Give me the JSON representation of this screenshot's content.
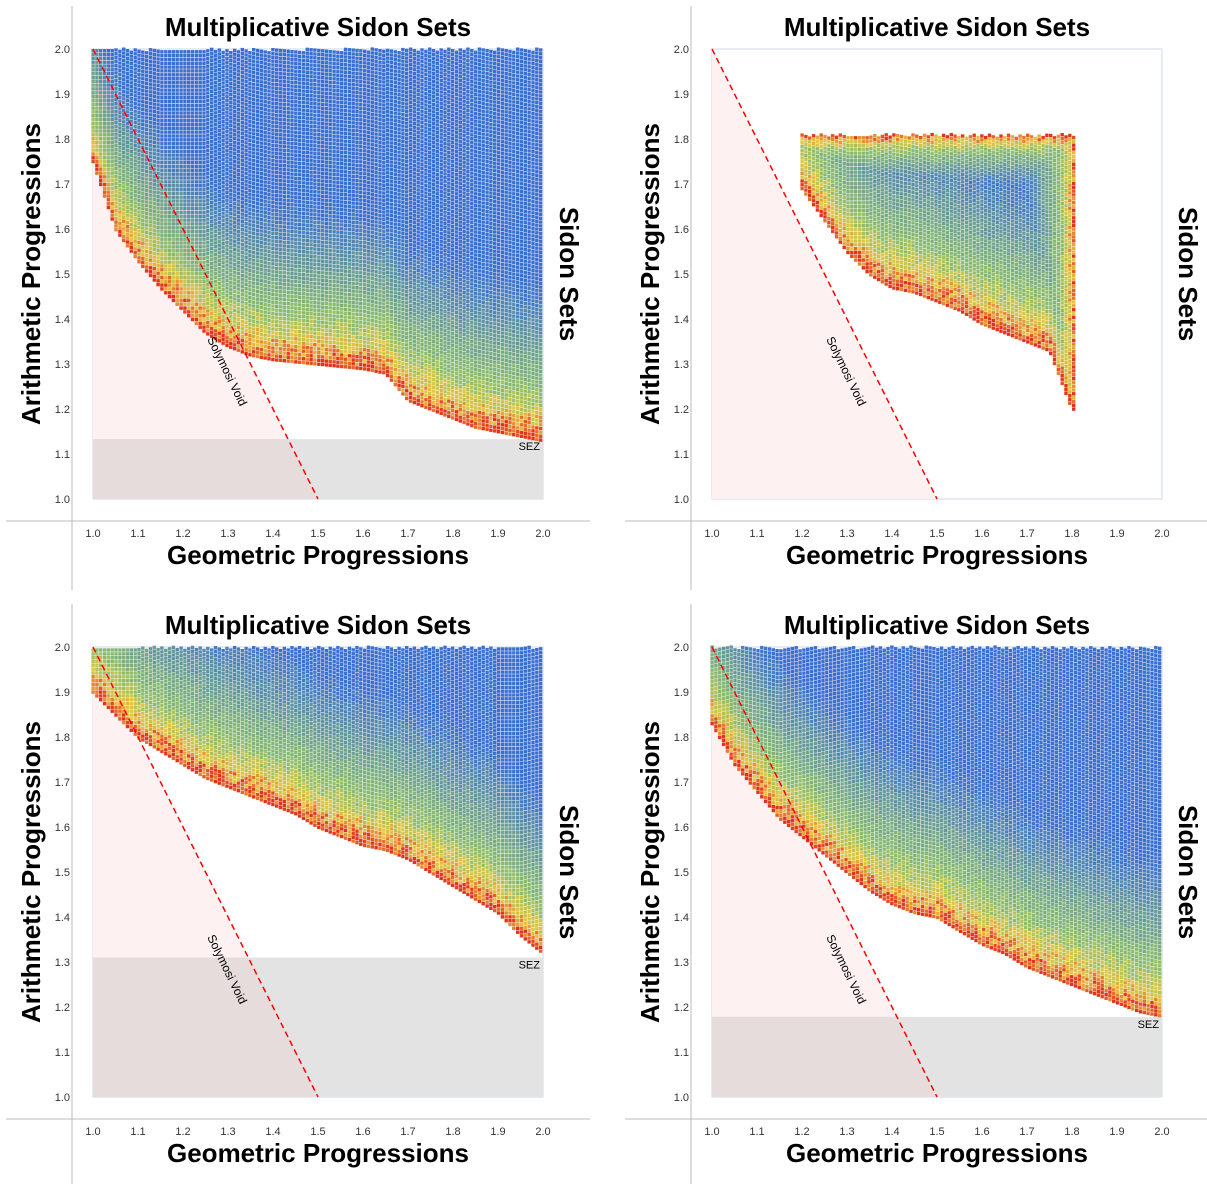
{
  "chart_data": [
    {
      "type": "scatter",
      "title": "Multiplicative Sidon Sets",
      "xlabel": "Geometric Progressions",
      "ylabel": "Arithmetic Progressions",
      "right_label": "Sidon Sets",
      "xlim": [
        1.0,
        2.0
      ],
      "ylim": [
        1.0,
        2.0
      ],
      "xticks": [
        "1.0",
        "1.1",
        "1.2",
        "1.3",
        "1.4",
        "1.5",
        "1.6",
        "1.7",
        "1.8",
        "1.9",
        "2.0"
      ],
      "yticks": [
        "1.0",
        "1.1",
        "1.2",
        "1.3",
        "1.4",
        "1.5",
        "1.6",
        "1.7",
        "1.8",
        "1.9",
        "2.0"
      ],
      "void_label": "Solymosi Void",
      "void_line": [
        [
          1.0,
          2.0
        ],
        [
          1.5,
          1.0
        ]
      ],
      "sez_label": "SEZ",
      "sez_level": 1.133,
      "boundary": [
        [
          1.0,
          1.75
        ],
        [
          1.05,
          1.6
        ],
        [
          1.1,
          1.53
        ],
        [
          1.15,
          1.47
        ],
        [
          1.2,
          1.42
        ],
        [
          1.25,
          1.37
        ],
        [
          1.3,
          1.34
        ],
        [
          1.35,
          1.32
        ],
        [
          1.4,
          1.31
        ],
        [
          1.5,
          1.3
        ],
        [
          1.6,
          1.29
        ],
        [
          1.65,
          1.28
        ],
        [
          1.7,
          1.22
        ],
        [
          1.75,
          1.2
        ],
        [
          1.8,
          1.18
        ],
        [
          1.85,
          1.16
        ],
        [
          1.9,
          1.15
        ],
        [
          1.95,
          1.14
        ],
        [
          2.0,
          1.13
        ]
      ],
      "region": {
        "xmin": 1.0,
        "xmax": 2.0,
        "ymax": 2.0
      }
    },
    {
      "type": "scatter",
      "title": "Multiplicative Sidon Sets",
      "xlabel": "Geometric Progressions",
      "ylabel": "Arithmetic Progressions",
      "right_label": "Sidon Sets",
      "xlim": [
        1.0,
        2.0
      ],
      "ylim": [
        1.0,
        2.0
      ],
      "xticks": [
        "1.0",
        "1.1",
        "1.2",
        "1.3",
        "1.4",
        "1.5",
        "1.6",
        "1.7",
        "1.8",
        "1.9",
        "2.0"
      ],
      "yticks": [
        "1.0",
        "1.1",
        "1.2",
        "1.3",
        "1.4",
        "1.5",
        "1.6",
        "1.7",
        "1.8",
        "1.9",
        "2.0"
      ],
      "void_label": "Solymosi Void",
      "void_line": [
        [
          1.0,
          2.0
        ],
        [
          1.5,
          1.0
        ]
      ],
      "sez_label": "",
      "sez_level": null,
      "boundary": [
        [
          1.2,
          1.69
        ],
        [
          1.25,
          1.62
        ],
        [
          1.3,
          1.55
        ],
        [
          1.35,
          1.5
        ],
        [
          1.4,
          1.47
        ],
        [
          1.45,
          1.46
        ],
        [
          1.5,
          1.44
        ],
        [
          1.55,
          1.42
        ],
        [
          1.6,
          1.39
        ],
        [
          1.65,
          1.37
        ],
        [
          1.7,
          1.35
        ],
        [
          1.75,
          1.33
        ],
        [
          1.8,
          1.2
        ]
      ],
      "region": {
        "xmin": 1.2,
        "xmax": 1.81,
        "ymax": 1.81
      }
    },
    {
      "type": "scatter",
      "title": "Multiplicative Sidon Sets",
      "xlabel": "Geometric Progressions",
      "ylabel": "Arithmetic Progressions",
      "right_label": "Sidon Sets",
      "xlim": [
        1.0,
        2.0
      ],
      "ylim": [
        1.0,
        2.0
      ],
      "xticks": [
        "1.0",
        "1.1",
        "1.2",
        "1.3",
        "1.4",
        "1.5",
        "1.6",
        "1.7",
        "1.8",
        "1.9",
        "2.0"
      ],
      "yticks": [
        "1.0",
        "1.1",
        "1.2",
        "1.3",
        "1.4",
        "1.5",
        "1.6",
        "1.7",
        "1.8",
        "1.9",
        "2.0"
      ],
      "void_label": "Solymosi Void",
      "void_line": [
        [
          1.0,
          2.0
        ],
        [
          1.5,
          1.0
        ]
      ],
      "sez_label": "SEZ",
      "sez_level": 1.31,
      "boundary": [
        [
          1.0,
          1.9
        ],
        [
          1.05,
          1.85
        ],
        [
          1.1,
          1.8
        ],
        [
          1.15,
          1.77
        ],
        [
          1.2,
          1.74
        ],
        [
          1.25,
          1.71
        ],
        [
          1.3,
          1.69
        ],
        [
          1.35,
          1.67
        ],
        [
          1.4,
          1.65
        ],
        [
          1.45,
          1.63
        ],
        [
          1.5,
          1.6
        ],
        [
          1.55,
          1.58
        ],
        [
          1.6,
          1.56
        ],
        [
          1.65,
          1.55
        ],
        [
          1.7,
          1.53
        ],
        [
          1.75,
          1.5
        ],
        [
          1.8,
          1.47
        ],
        [
          1.85,
          1.44
        ],
        [
          1.9,
          1.41
        ],
        [
          1.95,
          1.36
        ],
        [
          2.0,
          1.32
        ]
      ],
      "region": {
        "xmin": 1.0,
        "xmax": 2.0,
        "ymax": 2.0
      }
    },
    {
      "type": "scatter",
      "title": "Multiplicative Sidon Sets",
      "xlabel": "Geometric Progressions",
      "ylabel": "Arithmetic Progressions",
      "right_label": "Sidon Sets",
      "xlim": [
        1.0,
        2.0
      ],
      "ylim": [
        1.0,
        2.0
      ],
      "xticks": [
        "1.0",
        "1.1",
        "1.2",
        "1.3",
        "1.4",
        "1.5",
        "1.6",
        "1.7",
        "1.8",
        "1.9",
        "2.0"
      ],
      "yticks": [
        "1.0",
        "1.1",
        "1.2",
        "1.3",
        "1.4",
        "1.5",
        "1.6",
        "1.7",
        "1.8",
        "1.9",
        "2.0"
      ],
      "void_label": "Solymosi Void",
      "void_line": [
        [
          1.0,
          2.0
        ],
        [
          1.5,
          1.0
        ]
      ],
      "sez_label": "SEZ",
      "sez_level": 1.178,
      "boundary": [
        [
          1.0,
          1.83
        ],
        [
          1.05,
          1.74
        ],
        [
          1.1,
          1.68
        ],
        [
          1.15,
          1.62
        ],
        [
          1.2,
          1.58
        ],
        [
          1.25,
          1.54
        ],
        [
          1.3,
          1.5
        ],
        [
          1.35,
          1.46
        ],
        [
          1.4,
          1.43
        ],
        [
          1.45,
          1.41
        ],
        [
          1.5,
          1.4
        ],
        [
          1.55,
          1.37
        ],
        [
          1.6,
          1.34
        ],
        [
          1.65,
          1.32
        ],
        [
          1.7,
          1.29
        ],
        [
          1.75,
          1.27
        ],
        [
          1.8,
          1.25
        ],
        [
          1.85,
          1.23
        ],
        [
          1.9,
          1.21
        ],
        [
          1.95,
          1.19
        ],
        [
          2.0,
          1.18
        ]
      ],
      "region": {
        "xmin": 1.0,
        "xmax": 2.0,
        "ymax": 2.0
      }
    }
  ],
  "colors": {
    "void_fill": "#fdf1f1",
    "sez_fill": "#e3e3e3",
    "overlap_fill": "#e6dcdc",
    "dashed_line": "#ff0000",
    "frame": "#cfd8e8",
    "axis": "#bbbbbb",
    "blue": "#3b6fd0",
    "green": "#8dbf6a",
    "yellow": "#e6c640",
    "red": "#e0341c"
  }
}
